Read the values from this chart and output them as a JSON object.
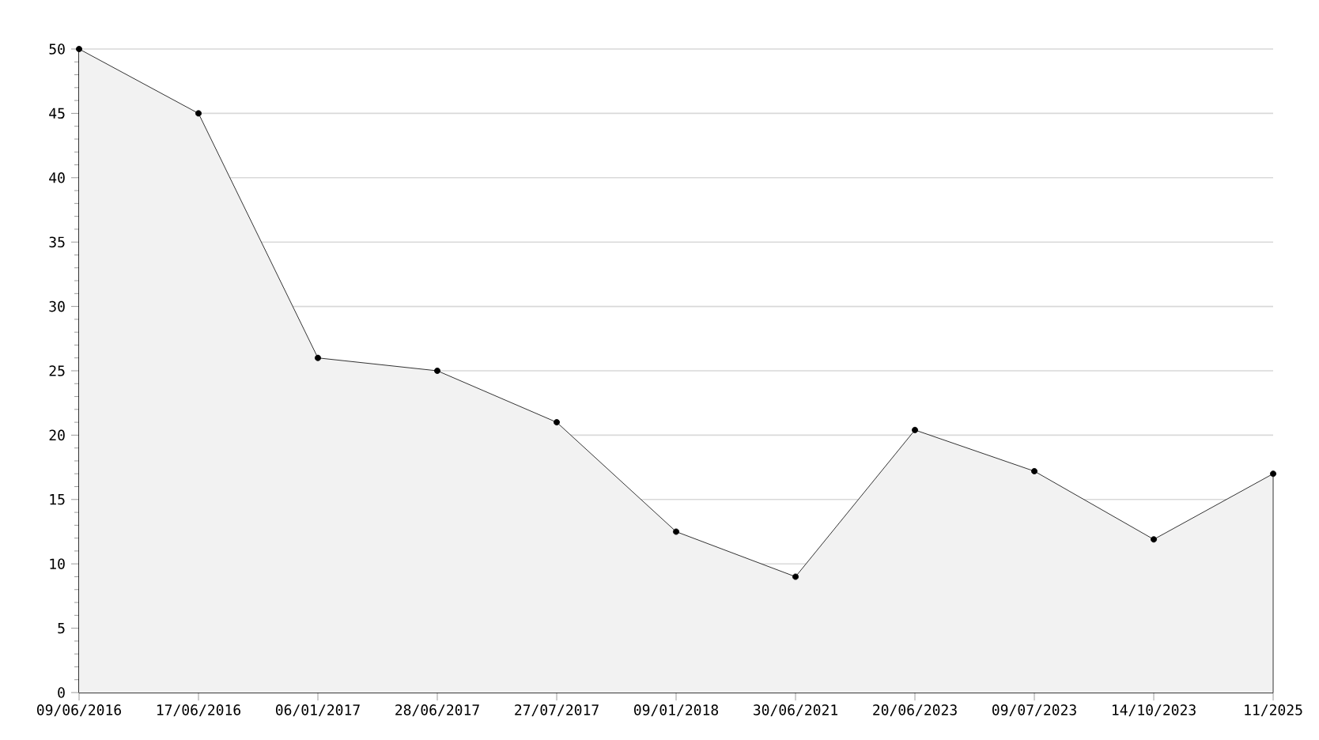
{
  "chart_data": {
    "type": "area",
    "categories": [
      "09/06/2016",
      "17/06/2016",
      "06/01/2017",
      "28/06/2017",
      "27/07/2017",
      "09/01/2018",
      "30/06/2021",
      "20/06/2023",
      "09/07/2023",
      "14/10/2023",
      "11/2025"
    ],
    "series": [
      {
        "color": "#000000",
        "values": [
          50,
          45,
          26,
          25,
          21,
          12.5,
          9,
          20.4,
          17.2,
          11.9,
          17
        ]
      }
    ],
    "ylim": [
      0,
      50
    ],
    "yticks": [
      0,
      5,
      10,
      15,
      20,
      25,
      30,
      35,
      40,
      45,
      50
    ],
    "grid": "y",
    "marker": "circle",
    "line_style": "solid"
  }
}
